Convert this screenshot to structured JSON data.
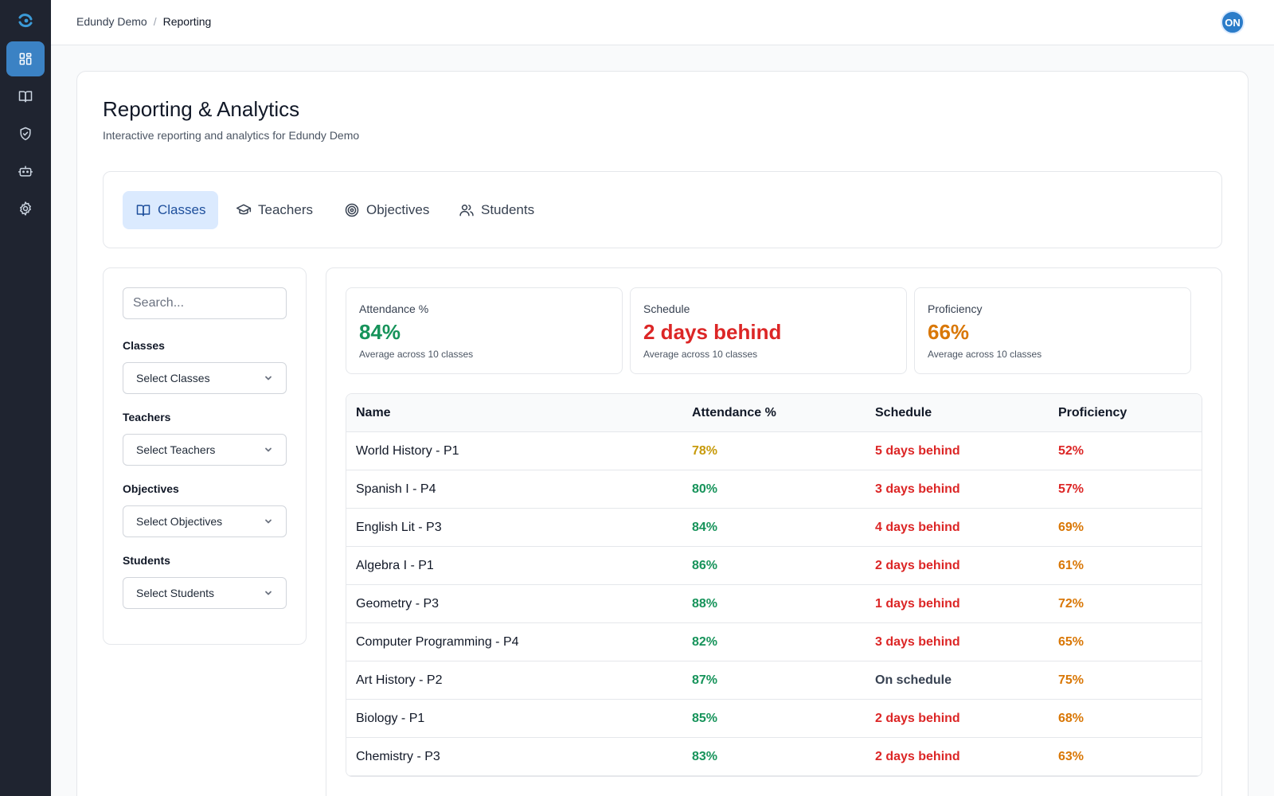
{
  "breadcrumb": {
    "org": "Edundy Demo",
    "separator": "/",
    "current": "Reporting"
  },
  "user": {
    "initials": "ON"
  },
  "rail": {
    "items": [
      {
        "icon": "dashboard-icon",
        "active": true
      },
      {
        "icon": "book-icon",
        "active": false
      },
      {
        "icon": "shield-check-icon",
        "active": false
      },
      {
        "icon": "bot-icon",
        "active": false
      },
      {
        "icon": "gear-icon",
        "active": false
      }
    ]
  },
  "page": {
    "title": "Reporting & Analytics",
    "subtitle": "Interactive reporting and analytics for Edundy Demo"
  },
  "tabs": [
    {
      "label": "Classes",
      "icon": "book-open-icon",
      "active": true
    },
    {
      "label": "Teachers",
      "icon": "graduation-cap-icon",
      "active": false
    },
    {
      "label": "Objectives",
      "icon": "target-icon",
      "active": false
    },
    {
      "label": "Students",
      "icon": "users-icon",
      "active": false
    }
  ],
  "filters": {
    "search_placeholder": "Search...",
    "groups": [
      {
        "label": "Classes",
        "placeholder": "Select Classes"
      },
      {
        "label": "Teachers",
        "placeholder": "Select Teachers"
      },
      {
        "label": "Objectives",
        "placeholder": "Select Objectives"
      },
      {
        "label": "Students",
        "placeholder": "Select Students"
      }
    ]
  },
  "metrics": [
    {
      "label": "Attendance %",
      "value": "84%",
      "note": "Average across 10 classes",
      "color": "#16935a"
    },
    {
      "label": "Schedule",
      "value": "2 days behind",
      "note": "Average across 10 classes",
      "color": "#dc2626"
    },
    {
      "label": "Proficiency",
      "value": "66%",
      "note": "Average across 10 classes",
      "color": "#d97706"
    }
  ],
  "table": {
    "headers": [
      "Name",
      "Attendance %",
      "Schedule",
      "Proficiency"
    ],
    "colors": {
      "green": "#16935a",
      "yellow": "#c79a0a",
      "red": "#dc2626",
      "orange": "#d97706",
      "gray": "#374151"
    },
    "rows": [
      {
        "name": "World History - P1",
        "attendance": "78%",
        "att_color": "yellow",
        "schedule": "5 days behind",
        "sch_color": "red",
        "proficiency": "52%",
        "prof_color": "red"
      },
      {
        "name": "Spanish I - P4",
        "attendance": "80%",
        "att_color": "green",
        "schedule": "3 days behind",
        "sch_color": "red",
        "proficiency": "57%",
        "prof_color": "red"
      },
      {
        "name": "English Lit - P3",
        "attendance": "84%",
        "att_color": "green",
        "schedule": "4 days behind",
        "sch_color": "red",
        "proficiency": "69%",
        "prof_color": "orange"
      },
      {
        "name": "Algebra I - P1",
        "attendance": "86%",
        "att_color": "green",
        "schedule": "2 days behind",
        "sch_color": "red",
        "proficiency": "61%",
        "prof_color": "orange"
      },
      {
        "name": "Geometry - P3",
        "attendance": "88%",
        "att_color": "green",
        "schedule": "1 days behind",
        "sch_color": "red",
        "proficiency": "72%",
        "prof_color": "orange"
      },
      {
        "name": "Computer Programming - P4",
        "attendance": "82%",
        "att_color": "green",
        "schedule": "3 days behind",
        "sch_color": "red",
        "proficiency": "65%",
        "prof_color": "orange"
      },
      {
        "name": "Art History - P2",
        "attendance": "87%",
        "att_color": "green",
        "schedule": "On schedule",
        "sch_color": "gray",
        "proficiency": "75%",
        "prof_color": "orange"
      },
      {
        "name": "Biology - P1",
        "attendance": "85%",
        "att_color": "green",
        "schedule": "2 days behind",
        "sch_color": "red",
        "proficiency": "68%",
        "prof_color": "orange"
      },
      {
        "name": "Chemistry - P3",
        "attendance": "83%",
        "att_color": "green",
        "schedule": "2 days behind",
        "sch_color": "red",
        "proficiency": "63%",
        "prof_color": "orange"
      }
    ]
  }
}
